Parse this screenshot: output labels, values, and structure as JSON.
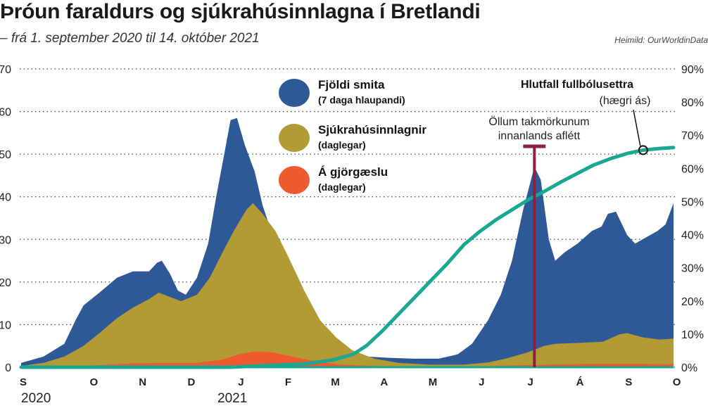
{
  "title": "Þróun faraldurs og sjúkrahúsinnlagna í Bretlandi",
  "subtitle": "– frá 1. september 2020 til 14. október 2021",
  "source": "Heimild: OurWorldinData",
  "colors": {
    "cases": "#2d5a96",
    "hospital": "#b29a35",
    "icu": "#ee5a2e",
    "vaccinated": "#1aa890",
    "marker": "#8b2041",
    "grid": "#444444"
  },
  "chart_data": {
    "type": "area",
    "x_labels": [
      "S",
      "O",
      "N",
      "D",
      "J",
      "F",
      "M",
      "A",
      "M",
      "J",
      "J",
      "Á",
      "S",
      "O"
    ],
    "year_labels": [
      "2020",
      "2021"
    ],
    "ylim_left": [
      0,
      70
    ],
    "yticks_left": [
      "0",
      "10",
      "20",
      "30",
      "40",
      "50",
      "60",
      "70"
    ],
    "ylim_right": [
      0,
      90
    ],
    "yticks_right": [
      "0%",
      "10%",
      "20%",
      "30%",
      "40%",
      "50%",
      "60%",
      "70%",
      "80%",
      "90%"
    ],
    "x_start": "2020-09-01",
    "x_end": "2021-10-14",
    "series": [
      {
        "name": "Fjöldi smita",
        "sublabel": "(7 daga hlaupandi)",
        "axis": "left",
        "points": [
          [
            "2020-09-01",
            1
          ],
          [
            "2020-09-15",
            2.5
          ],
          [
            "2020-09-28",
            5.5
          ],
          [
            "2020-10-05",
            11
          ],
          [
            "2020-10-10",
            14.5
          ],
          [
            "2020-10-20",
            17.5
          ],
          [
            "2020-10-31",
            21
          ],
          [
            "2020-11-10",
            22.5
          ],
          [
            "2020-11-20",
            22.5
          ],
          [
            "2020-11-25",
            24.5
          ],
          [
            "2020-11-28",
            25
          ],
          [
            "2020-12-03",
            22
          ],
          [
            "2020-12-08",
            18
          ],
          [
            "2020-12-13",
            17
          ],
          [
            "2020-12-20",
            21
          ],
          [
            "2020-12-27",
            29
          ],
          [
            "2021-01-01",
            40
          ],
          [
            "2021-01-06",
            50
          ],
          [
            "2021-01-10",
            58
          ],
          [
            "2021-01-14",
            58.5
          ],
          [
            "2021-01-19",
            52
          ],
          [
            "2021-01-25",
            46
          ],
          [
            "2021-01-30",
            38
          ],
          [
            "2021-02-07",
            29
          ],
          [
            "2021-02-15",
            20
          ],
          [
            "2021-02-25",
            13
          ],
          [
            "2021-03-05",
            9
          ],
          [
            "2021-03-15",
            6
          ],
          [
            "2021-03-25",
            4
          ],
          [
            "2021-04-05",
            2.5
          ],
          [
            "2021-04-20",
            2.2
          ],
          [
            "2021-05-05",
            2
          ],
          [
            "2021-05-20",
            2
          ],
          [
            "2021-06-01",
            3
          ],
          [
            "2021-06-10",
            5.5
          ],
          [
            "2021-06-20",
            11
          ],
          [
            "2021-06-28",
            17
          ],
          [
            "2021-07-05",
            25
          ],
          [
            "2021-07-12",
            37
          ],
          [
            "2021-07-19",
            47
          ],
          [
            "2021-07-23",
            44
          ],
          [
            "2021-07-28",
            30
          ],
          [
            "2021-08-01",
            25
          ],
          [
            "2021-08-07",
            27
          ],
          [
            "2021-08-15",
            29
          ],
          [
            "2021-08-24",
            32
          ],
          [
            "2021-08-30",
            33
          ],
          [
            "2021-09-03",
            36
          ],
          [
            "2021-09-08",
            36.5
          ],
          [
            "2021-09-15",
            31
          ],
          [
            "2021-09-20",
            29
          ],
          [
            "2021-09-27",
            30.5
          ],
          [
            "2021-10-04",
            32
          ],
          [
            "2021-10-09",
            33.5
          ],
          [
            "2021-10-14",
            38.5
          ]
        ]
      },
      {
        "name": "Sjúkrahúsinnlagnir",
        "sublabel": "(daglegar)",
        "axis": "left",
        "points": [
          [
            "2020-09-01",
            0.3
          ],
          [
            "2020-09-15",
            1
          ],
          [
            "2020-09-28",
            2.5
          ],
          [
            "2020-10-10",
            5
          ],
          [
            "2020-10-20",
            8
          ],
          [
            "2020-10-31",
            11.5
          ],
          [
            "2020-11-10",
            14
          ],
          [
            "2020-11-20",
            16
          ],
          [
            "2020-11-26",
            17.5
          ],
          [
            "2020-12-03",
            16.5
          ],
          [
            "2020-12-10",
            15.5
          ],
          [
            "2020-12-20",
            17
          ],
          [
            "2020-12-28",
            21
          ],
          [
            "2021-01-05",
            27
          ],
          [
            "2021-01-12",
            32
          ],
          [
            "2021-01-20",
            37
          ],
          [
            "2021-01-24",
            38.5
          ],
          [
            "2021-01-30",
            36
          ],
          [
            "2021-02-07",
            32
          ],
          [
            "2021-02-15",
            26
          ],
          [
            "2021-02-25",
            18
          ],
          [
            "2021-03-07",
            11
          ],
          [
            "2021-03-17",
            7
          ],
          [
            "2021-03-27",
            4
          ],
          [
            "2021-04-10",
            2
          ],
          [
            "2021-04-25",
            1
          ],
          [
            "2021-05-15",
            0.6
          ],
          [
            "2021-06-05",
            0.6
          ],
          [
            "2021-06-20",
            1.1
          ],
          [
            "2021-07-01",
            2
          ],
          [
            "2021-07-15",
            3.5
          ],
          [
            "2021-07-25",
            5
          ],
          [
            "2021-08-01",
            5.5
          ],
          [
            "2021-08-15",
            5.7
          ],
          [
            "2021-08-31",
            6
          ],
          [
            "2021-09-10",
            7.7
          ],
          [
            "2021-09-15",
            8
          ],
          [
            "2021-09-25",
            7
          ],
          [
            "2021-10-05",
            6.5
          ],
          [
            "2021-10-14",
            6.7
          ]
        ]
      },
      {
        "name": "Á gjörgæslu",
        "sublabel": "(daglegar)",
        "axis": "left",
        "points": [
          [
            "2020-09-01",
            0.1
          ],
          [
            "2020-10-01",
            0.2
          ],
          [
            "2020-10-20",
            0.5
          ],
          [
            "2020-11-10",
            0.9
          ],
          [
            "2020-12-01",
            1
          ],
          [
            "2020-12-20",
            1
          ],
          [
            "2021-01-05",
            1.8
          ],
          [
            "2021-01-15",
            3
          ],
          [
            "2021-01-25",
            3.7
          ],
          [
            "2021-02-05",
            3.5
          ],
          [
            "2021-02-20",
            2.3
          ],
          [
            "2021-03-05",
            1.3
          ],
          [
            "2021-03-20",
            0.6
          ],
          [
            "2021-04-10",
            0.3
          ],
          [
            "2021-05-15",
            0.2
          ],
          [
            "2021-06-15",
            0.25
          ],
          [
            "2021-07-15",
            0.5
          ],
          [
            "2021-08-15",
            0.75
          ],
          [
            "2021-09-15",
            0.8
          ],
          [
            "2021-10-14",
            0.7
          ]
        ]
      },
      {
        "name": "Hlutfall fullbólusettra",
        "sublabel": "(hægri ás)",
        "axis": "right",
        "points": [
          [
            "2020-09-01",
            0
          ],
          [
            "2021-01-10",
            0
          ],
          [
            "2021-02-05",
            0.6
          ],
          [
            "2021-02-25",
            1
          ],
          [
            "2021-03-15",
            2.2
          ],
          [
            "2021-03-28",
            4
          ],
          [
            "2021-04-05",
            6.5
          ],
          [
            "2021-04-15",
            11
          ],
          [
            "2021-04-25",
            16
          ],
          [
            "2021-05-05",
            21
          ],
          [
            "2021-05-15",
            26
          ],
          [
            "2021-05-25",
            31
          ],
          [
            "2021-06-05",
            37
          ],
          [
            "2021-06-15",
            41
          ],
          [
            "2021-06-25",
            44.5
          ],
          [
            "2021-07-05",
            47.5
          ],
          [
            "2021-07-15",
            50.5
          ],
          [
            "2021-07-25",
            53
          ],
          [
            "2021-08-05",
            56
          ],
          [
            "2021-08-15",
            58.5
          ],
          [
            "2021-08-25",
            61
          ],
          [
            "2021-09-05",
            63
          ],
          [
            "2021-09-15",
            64.5
          ],
          [
            "2021-09-25",
            65.5
          ],
          [
            "2021-10-05",
            66
          ],
          [
            "2021-10-14",
            66.3
          ]
        ]
      }
    ],
    "annotations": [
      {
        "text_lines": [
          "Öllum takmörkunum",
          "innanlands aflétt"
        ],
        "date": "2021-07-19"
      },
      {
        "text_lines": [
          "Hlutfall fullbólusettra",
          "(hægri ás)"
        ],
        "date": "2021-09-25",
        "value": 65.5
      }
    ]
  }
}
